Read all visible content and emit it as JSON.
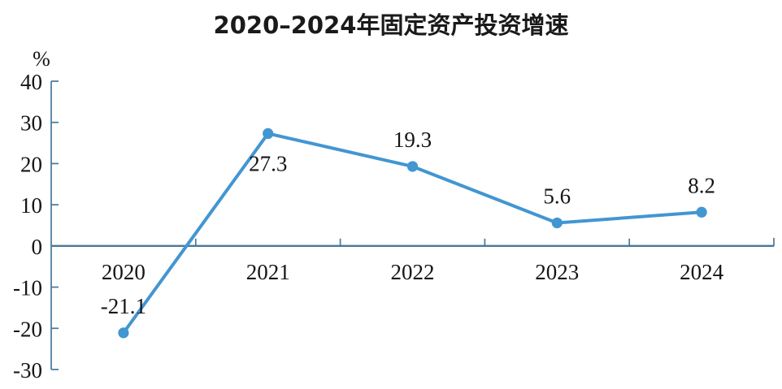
{
  "title": "2020–2024年固定资产投资增速",
  "chart_data": {
    "type": "line",
    "title": "2020–2024年固定资产投资增速",
    "xlabel": "",
    "ylabel": "%",
    "categories": [
      "2020",
      "2021",
      "2022",
      "2023",
      "2024"
    ],
    "values": [
      -21.1,
      27.3,
      19.3,
      5.6,
      8.2
    ],
    "data_labels": [
      "-21.1",
      "27.3",
      "19.3",
      "5.6",
      "8.2"
    ],
    "label_side": [
      "above",
      "below",
      "above",
      "above",
      "above"
    ],
    "y_ticks": [
      40,
      30,
      20,
      10,
      0,
      -10,
      -20,
      -30
    ],
    "ylim": [
      -30,
      40
    ],
    "grid": false,
    "legend": "none",
    "marker": "circle",
    "colors": {
      "line": "#4296D2",
      "marker": "#4296D2",
      "axis": "#47789A",
      "text": "#151515"
    }
  }
}
